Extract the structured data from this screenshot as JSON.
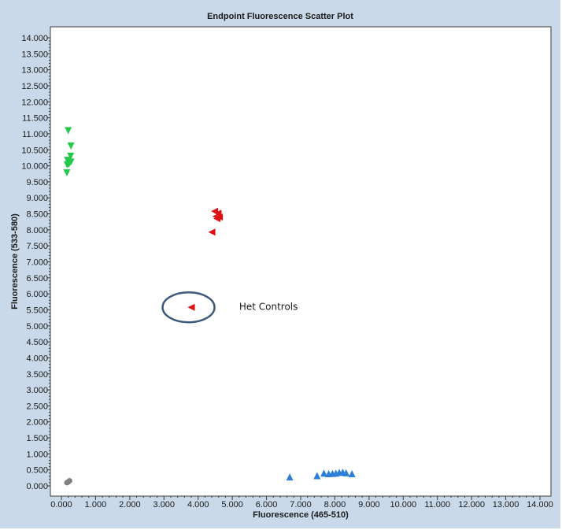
{
  "chart_data": {
    "type": "scatter",
    "title": "Endpoint Fluorescence Scatter Plot",
    "xlabel": "Fluorescence (465-510)",
    "ylabel": "Fluorescence (533-580)",
    "xlim": [
      0,
      14
    ],
    "ylim": [
      0,
      14
    ],
    "x_ticks": [
      "0.000",
      "1.000",
      "2.000",
      "3.000",
      "4.000",
      "5.000",
      "6.000",
      "7.000",
      "8.000",
      "9.000",
      "10.000",
      "11.000",
      "12.000",
      "13.000",
      "14.000"
    ],
    "y_ticks": [
      "0.000",
      "0.500",
      "1.000",
      "1.500",
      "2.000",
      "2.500",
      "3.000",
      "3.500",
      "4.000",
      "4.500",
      "5.000",
      "5.500",
      "6.000",
      "6.500",
      "7.000",
      "7.500",
      "8.000",
      "8.500",
      "9.000",
      "9.500",
      "10.000",
      "10.500",
      "11.000",
      "11.500",
      "12.000",
      "12.500",
      "13.000",
      "13.500",
      "14.000"
    ],
    "grid": false,
    "series": [
      {
        "marker": "triangle-down",
        "color": "#22c84a",
        "points": [
          [
            0.2,
            11.1
          ],
          [
            0.28,
            10.62
          ],
          [
            0.27,
            10.3
          ],
          [
            0.18,
            10.17
          ],
          [
            0.22,
            10.05
          ],
          [
            0.28,
            10.12
          ],
          [
            0.17,
            10.03
          ],
          [
            0.16,
            9.78
          ]
        ]
      },
      {
        "marker": "triangle-left",
        "color": "#e01010",
        "points": [
          [
            4.48,
            8.58
          ],
          [
            4.58,
            8.52
          ],
          [
            4.52,
            8.42
          ],
          [
            4.62,
            8.4
          ],
          [
            4.55,
            8.35
          ],
          [
            4.4,
            7.93
          ]
        ]
      },
      {
        "marker": "triangle-left",
        "color": "#e01010",
        "points": [
          [
            3.8,
            5.58
          ]
        ]
      },
      {
        "marker": "triangle-up",
        "color": "#2b7fd6",
        "points": [
          [
            6.68,
            0.28
          ],
          [
            7.48,
            0.32
          ],
          [
            7.68,
            0.4
          ],
          [
            7.82,
            0.38
          ],
          [
            7.93,
            0.39
          ],
          [
            8.03,
            0.4
          ],
          [
            8.13,
            0.42
          ],
          [
            8.23,
            0.43
          ],
          [
            8.33,
            0.41
          ],
          [
            8.5,
            0.38
          ]
        ]
      },
      {
        "marker": "circle",
        "color": "#808080",
        "points": [
          [
            0.16,
            0.1
          ],
          [
            0.19,
            0.12
          ],
          [
            0.22,
            0.14
          ],
          [
            0.24,
            0.16
          ],
          [
            0.18,
            0.11
          ]
        ]
      }
    ],
    "annotations": [
      {
        "text": "Het Controls",
        "x": 5.2,
        "y": 5.6,
        "ellipse_center": [
          3.72,
          5.58
        ]
      }
    ]
  }
}
